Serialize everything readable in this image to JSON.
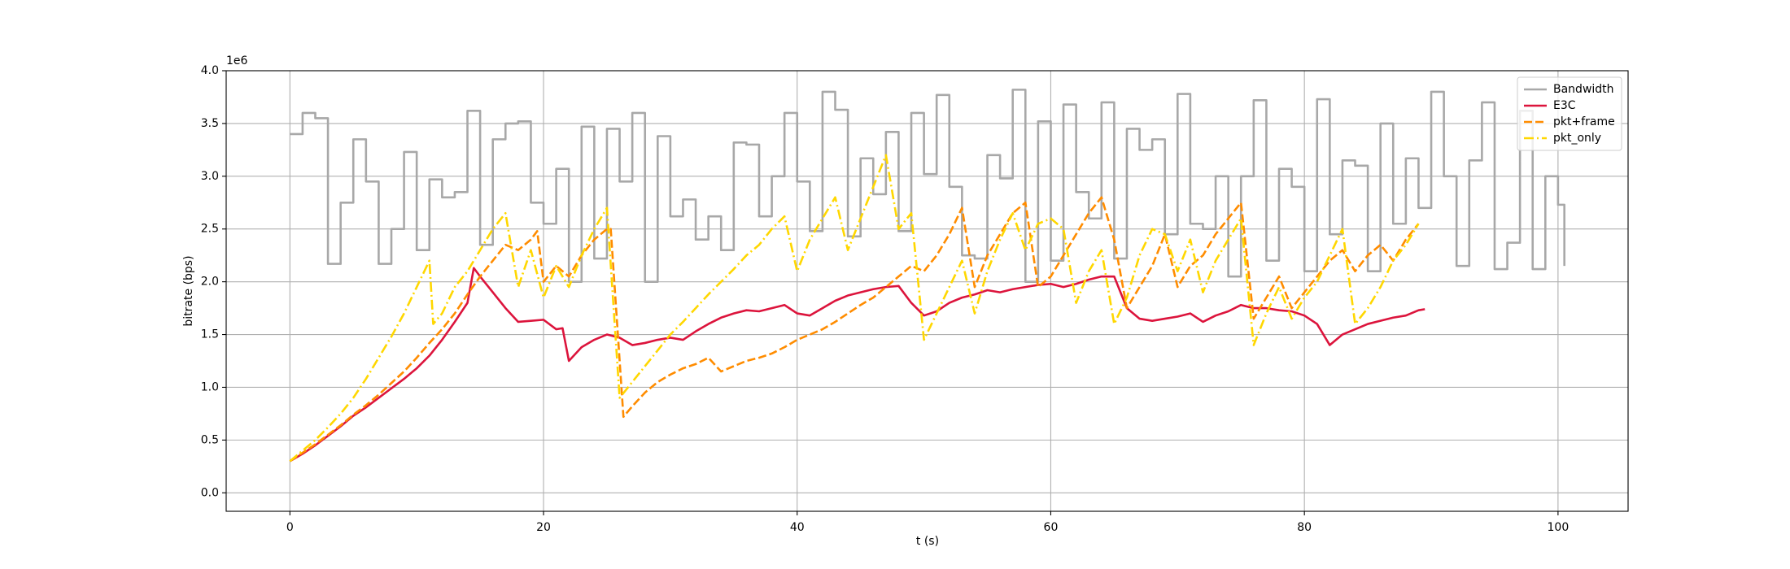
{
  "chart_data": {
    "type": "line",
    "xlabel": "t (s)",
    "ylabel": "bitrate (bps)",
    "y_offset_text": "1e6",
    "xlim": [
      -5.025,
      105.525
    ],
    "ylim": [
      -175000,
      4000000
    ],
    "xticks": [
      0,
      20,
      40,
      60,
      80,
      100
    ],
    "yticks": [
      {
        "value": 0,
        "label": "0.0"
      },
      {
        "value": 500000,
        "label": "0.5"
      },
      {
        "value": 1000000,
        "label": "1.0"
      },
      {
        "value": 1500000,
        "label": "1.5"
      },
      {
        "value": 2000000,
        "label": "2.0"
      },
      {
        "value": 2500000,
        "label": "2.5"
      },
      {
        "value": 3000000,
        "label": "3.0"
      },
      {
        "value": 3500000,
        "label": "3.5"
      },
      {
        "value": 4000000,
        "label": "4.0"
      }
    ],
    "grid": true,
    "legend": "upper right",
    "series": [
      {
        "name": "Bandwidth",
        "color": "#a8a8a8",
        "linestyle": "solid",
        "drawstyle": "steps-post",
        "x": [
          0,
          1,
          2,
          3,
          4,
          5,
          6,
          7,
          8,
          9,
          10,
          11,
          12,
          13,
          14,
          15,
          16,
          17,
          18,
          19,
          20,
          21,
          22,
          23,
          24,
          25,
          26,
          27,
          28,
          29,
          30,
          31,
          32,
          33,
          34,
          35,
          36,
          37,
          38,
          39,
          40,
          41,
          42,
          43,
          44,
          45,
          46,
          47,
          48,
          49,
          50,
          51,
          52,
          53,
          54,
          55,
          56,
          57,
          58,
          59,
          60,
          61,
          62,
          63,
          64,
          65,
          66,
          67,
          68,
          69,
          70,
          71,
          72,
          73,
          74,
          75,
          76,
          77,
          78,
          79,
          80,
          81,
          82,
          83,
          84,
          85,
          86,
          87,
          88,
          89,
          90,
          91,
          92,
          93,
          94,
          95,
          96,
          97,
          98,
          99,
          100,
          100.5
        ],
        "values": [
          3400000,
          3600000,
          3550000,
          2170000,
          2750000,
          3350000,
          2950000,
          2170000,
          2500000,
          3230000,
          2300000,
          2970000,
          2800000,
          2850000,
          3620000,
          2350000,
          3350000,
          3500000,
          3520000,
          2750000,
          2550000,
          3070000,
          2000000,
          3470000,
          2220000,
          3450000,
          2950000,
          3600000,
          2000000,
          3380000,
          2620000,
          2780000,
          2400000,
          2620000,
          2300000,
          3320000,
          3300000,
          2620000,
          3000000,
          3600000,
          2950000,
          2480000,
          3800000,
          3630000,
          2430000,
          3170000,
          2830000,
          3420000,
          2480000,
          3600000,
          3020000,
          3770000,
          2900000,
          2250000,
          2220000,
          3200000,
          2980000,
          3820000,
          2000000,
          3520000,
          2200000,
          3680000,
          2850000,
          2600000,
          3700000,
          2220000,
          3450000,
          3250000,
          3350000,
          2450000,
          3780000,
          2550000,
          2500000,
          3000000,
          2050000,
          3000000,
          3720000,
          2200000,
          3070000,
          2900000,
          2100000,
          3730000,
          2450000,
          3150000,
          3100000,
          2100000,
          3500000,
          2550000,
          3170000,
          2700000,
          3800000,
          3000000,
          2150000,
          3150000,
          3700000,
          2120000,
          2370000,
          3620000,
          2120000,
          3000000,
          2730000,
          2150000
        ]
      },
      {
        "name": "E3C",
        "color": "#dc143c",
        "linestyle": "solid",
        "x": [
          0,
          1,
          2,
          3,
          4,
          5,
          6,
          7,
          8,
          9,
          10,
          11,
          12,
          13,
          14,
          14.5,
          15,
          16,
          17,
          18,
          19,
          20,
          21,
          21.5,
          22,
          23,
          24,
          25,
          26,
          27,
          28,
          29,
          30,
          31,
          32,
          33,
          34,
          35,
          36,
          37,
          38,
          39,
          40,
          41,
          42,
          43,
          44,
          45,
          46,
          47,
          48,
          49,
          50,
          51,
          52,
          53,
          54,
          55,
          56,
          57,
          58,
          59,
          60,
          61,
          62,
          63,
          64,
          65,
          66,
          67,
          68,
          69,
          70,
          71,
          72,
          73,
          74,
          75,
          76,
          77,
          78,
          79,
          80,
          81,
          82,
          83,
          84,
          85,
          86,
          87,
          88,
          89,
          89.5
        ],
        "values": [
          300000,
          370000,
          450000,
          540000,
          630000,
          730000,
          810000,
          900000,
          990000,
          1080000,
          1180000,
          1300000,
          1450000,
          1620000,
          1800000,
          2130000,
          2050000,
          1900000,
          1750000,
          1620000,
          1630000,
          1640000,
          1550000,
          1560000,
          1250000,
          1380000,
          1450000,
          1500000,
          1470000,
          1400000,
          1420000,
          1450000,
          1470000,
          1450000,
          1530000,
          1600000,
          1660000,
          1700000,
          1730000,
          1720000,
          1750000,
          1780000,
          1700000,
          1680000,
          1750000,
          1820000,
          1870000,
          1900000,
          1930000,
          1950000,
          1960000,
          1800000,
          1680000,
          1720000,
          1800000,
          1850000,
          1880000,
          1920000,
          1900000,
          1930000,
          1950000,
          1970000,
          1980000,
          1950000,
          1980000,
          2020000,
          2050000,
          2050000,
          1750000,
          1650000,
          1630000,
          1650000,
          1670000,
          1700000,
          1620000,
          1680000,
          1720000,
          1780000,
          1750000,
          1750000,
          1730000,
          1720000,
          1680000,
          1600000,
          1400000,
          1500000,
          1550000,
          1600000,
          1630000,
          1660000,
          1680000,
          1730000,
          1740000
        ]
      },
      {
        "name": "pkt+frame",
        "color": "#ff8c00",
        "linestyle": "dashed",
        "x": [
          0,
          1,
          2,
          3,
          4,
          5,
          6,
          7,
          8,
          9,
          10,
          11,
          12,
          13,
          14,
          15,
          16,
          17,
          18,
          19,
          19.5,
          20,
          21,
          22,
          23,
          24,
          25,
          25.3,
          26.3,
          27,
          28,
          29,
          30,
          31,
          32,
          33,
          34,
          35,
          36,
          37,
          38,
          39,
          40,
          41,
          42,
          43,
          44,
          45,
          46,
          47,
          48,
          49,
          50,
          51,
          52,
          53,
          54,
          55,
          56,
          57,
          58,
          59,
          60,
          61,
          62,
          63,
          64,
          65,
          66,
          67,
          68,
          69,
          70,
          71,
          72,
          73,
          74,
          75,
          76,
          77,
          78,
          79,
          80,
          81,
          82,
          83,
          84,
          85,
          86,
          87,
          88,
          89
        ],
        "values": [
          300000,
          380000,
          460000,
          550000,
          640000,
          740000,
          830000,
          930000,
          1040000,
          1150000,
          1280000,
          1420000,
          1550000,
          1700000,
          1880000,
          2050000,
          2200000,
          2350000,
          2300000,
          2400000,
          2480000,
          2000000,
          2150000,
          2050000,
          2250000,
          2400000,
          2500000,
          2500000,
          720000,
          820000,
          950000,
          1050000,
          1120000,
          1180000,
          1220000,
          1280000,
          1150000,
          1200000,
          1250000,
          1280000,
          1320000,
          1380000,
          1450000,
          1500000,
          1550000,
          1620000,
          1700000,
          1780000,
          1850000,
          1950000,
          2050000,
          2150000,
          2100000,
          2250000,
          2450000,
          2700000,
          1950000,
          2250000,
          2450000,
          2650000,
          2750000,
          1950000,
          2050000,
          2250000,
          2450000,
          2650000,
          2800000,
          2400000,
          1750000,
          1950000,
          2150000,
          2450000,
          1950000,
          2150000,
          2250000,
          2450000,
          2600000,
          2750000,
          1650000,
          1850000,
          2050000,
          1750000,
          1900000,
          2050000,
          2200000,
          2300000,
          2100000,
          2250000,
          2350000,
          2200000,
          2400000,
          2550000
        ]
      },
      {
        "name": "pkt_only",
        "color": "#ffd700",
        "linestyle": "dashdot",
        "x": [
          0,
          1,
          2,
          3,
          4,
          5,
          6,
          7,
          8,
          9,
          10,
          11,
          11.3,
          12,
          13,
          14,
          15,
          16,
          17,
          18,
          19,
          20,
          21,
          22,
          23,
          24,
          25,
          26,
          27,
          28,
          29,
          30,
          31,
          32,
          33,
          34,
          35,
          36,
          37,
          38,
          39,
          40,
          41,
          42,
          43,
          44,
          45,
          46,
          47,
          48,
          49,
          50,
          51,
          52,
          53,
          54,
          55,
          56,
          57,
          58,
          59,
          60,
          61,
          62,
          63,
          64,
          65,
          66,
          67,
          68,
          69,
          70,
          71,
          72,
          73,
          74,
          75,
          76,
          77,
          78,
          79,
          80,
          81,
          82,
          83,
          84,
          85,
          86,
          87,
          88,
          89
        ],
        "values": [
          300000,
          400000,
          500000,
          620000,
          750000,
          900000,
          1080000,
          1280000,
          1480000,
          1700000,
          1950000,
          2200000,
          1600000,
          1700000,
          1950000,
          2100000,
          2300000,
          2500000,
          2650000,
          1950000,
          2300000,
          1850000,
          2150000,
          1950000,
          2250000,
          2500000,
          2700000,
          900000,
          1050000,
          1200000,
          1350000,
          1500000,
          1620000,
          1750000,
          1880000,
          2000000,
          2120000,
          2250000,
          2350000,
          2500000,
          2620000,
          2100000,
          2400000,
          2600000,
          2800000,
          2300000,
          2600000,
          2900000,
          3200000,
          2500000,
          2650000,
          1450000,
          1700000,
          1950000,
          2200000,
          1700000,
          2100000,
          2400000,
          2650000,
          2300000,
          2550000,
          2600000,
          2500000,
          1800000,
          2100000,
          2300000,
          1600000,
          1850000,
          2250000,
          2500000,
          2450000,
          2100000,
          2400000,
          1900000,
          2200000,
          2400000,
          2600000,
          1400000,
          1700000,
          1950000,
          1650000,
          1850000,
          2000000,
          2250000,
          2500000,
          1600000,
          1750000,
          1950000,
          2200000,
          2350000,
          2550000
        ]
      }
    ]
  }
}
